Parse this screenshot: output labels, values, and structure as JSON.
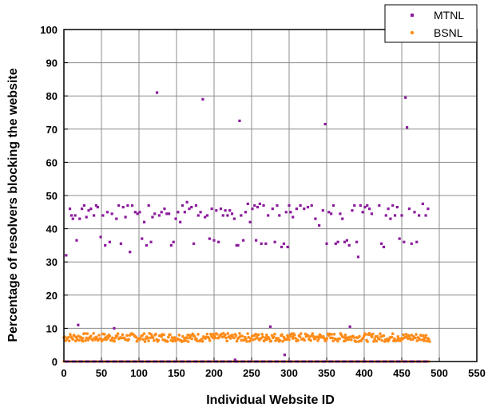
{
  "chart_data": {
    "type": "scatter",
    "title": "",
    "xlabel": "Individual Website ID",
    "ylabel": "Percentage of resolvers blocking the website",
    "xlim": [
      0,
      550
    ],
    "ylim": [
      0,
      100
    ],
    "x_ticks": [
      "0",
      "50",
      "100",
      "150",
      "200",
      "250",
      "300",
      "350",
      "400",
      "450",
      "500",
      "550"
    ],
    "y_ticks": [
      "0",
      "10",
      "20",
      "30",
      "40",
      "50",
      "60",
      "70",
      "80",
      "90",
      "100"
    ],
    "grid": true,
    "legend_position": "top-right",
    "series": [
      {
        "name": "MTNL",
        "color": "#8b1a9c",
        "points": [
          [
            3,
            32
          ],
          [
            8,
            46
          ],
          [
            10,
            44
          ],
          [
            12,
            43
          ],
          [
            15,
            44
          ],
          [
            17,
            36.5
          ],
          [
            19,
            11
          ],
          [
            21,
            43
          ],
          [
            24,
            46
          ],
          [
            27,
            47
          ],
          [
            30,
            43.5
          ],
          [
            33,
            45.5
          ],
          [
            36,
            46
          ],
          [
            40,
            44
          ],
          [
            43,
            47
          ],
          [
            45,
            46.5
          ],
          [
            49,
            37.5
          ],
          [
            52,
            44
          ],
          [
            55,
            35
          ],
          [
            58,
            45
          ],
          [
            61,
            36
          ],
          [
            64,
            44.5
          ],
          [
            67,
            10
          ],
          [
            70,
            43
          ],
          [
            73,
            47
          ],
          [
            76,
            35.5
          ],
          [
            79,
            46.5
          ],
          [
            82,
            43.5
          ],
          [
            85,
            47
          ],
          [
            88,
            33
          ],
          [
            91,
            47
          ],
          [
            95,
            45
          ],
          [
            98,
            44.5
          ],
          [
            101,
            45
          ],
          [
            104,
            37
          ],
          [
            107,
            42
          ],
          [
            110,
            35
          ],
          [
            113,
            47
          ],
          [
            116,
            36
          ],
          [
            118,
            43.5
          ],
          [
            121,
            44.5
          ],
          [
            124,
            81
          ],
          [
            127,
            44
          ],
          [
            130,
            45
          ],
          [
            134,
            46
          ],
          [
            137,
            44.5
          ],
          [
            140,
            44.5
          ],
          [
            143,
            35
          ],
          [
            146,
            36
          ],
          [
            149,
            43
          ],
          [
            152,
            45
          ],
          [
            155,
            42
          ],
          [
            158,
            47
          ],
          [
            161,
            45
          ],
          [
            164,
            48
          ],
          [
            167,
            46
          ],
          [
            170,
            46.5
          ],
          [
            173,
            35.5
          ],
          [
            176,
            47
          ],
          [
            179,
            44
          ],
          [
            182,
            45
          ],
          [
            185,
            79
          ],
          [
            188,
            43.5
          ],
          [
            191,
            44
          ],
          [
            194,
            37
          ],
          [
            197,
            46
          ],
          [
            200,
            36.5
          ],
          [
            203,
            45.5
          ],
          [
            206,
            36
          ],
          [
            209,
            46
          ],
          [
            212,
            44
          ],
          [
            215,
            45.5
          ],
          [
            218,
            44
          ],
          [
            221,
            45.5
          ],
          [
            224,
            44.5
          ],
          [
            227,
            43
          ],
          [
            228,
            0.5
          ],
          [
            230,
            35
          ],
          [
            232,
            35
          ],
          [
            234,
            72.5
          ],
          [
            236,
            44
          ],
          [
            239,
            36.5
          ],
          [
            242,
            45
          ],
          [
            245,
            47.5
          ],
          [
            248,
            42
          ],
          [
            251,
            46
          ],
          [
            254,
            47
          ],
          [
            256,
            36.5
          ],
          [
            258,
            46.5
          ],
          [
            261,
            47.5
          ],
          [
            263,
            35.5
          ],
          [
            266,
            47
          ],
          [
            269,
            35.5
          ],
          [
            272,
            44
          ],
          [
            275,
            10.5
          ],
          [
            278,
            46
          ],
          [
            281,
            36
          ],
          [
            284,
            47
          ],
          [
            287,
            44
          ],
          [
            290,
            34.5
          ],
          [
            293,
            35.5
          ],
          [
            294,
            2
          ],
          [
            296,
            45
          ],
          [
            298,
            34.5
          ],
          [
            300,
            47
          ],
          [
            302,
            45
          ],
          [
            305,
            43.5
          ],
          [
            310,
            46
          ],
          [
            315,
            47
          ],
          [
            320,
            46
          ],
          [
            325,
            46.5
          ],
          [
            330,
            47
          ],
          [
            335,
            43
          ],
          [
            340,
            41
          ],
          [
            345,
            45.5
          ],
          [
            348,
            71.5
          ],
          [
            350,
            35.5
          ],
          [
            353,
            45
          ],
          [
            356,
            44.5
          ],
          [
            359,
            47
          ],
          [
            362,
            35.5
          ],
          [
            365,
            36
          ],
          [
            368,
            44.5
          ],
          [
            371,
            43
          ],
          [
            374,
            36
          ],
          [
            377,
            36.5
          ],
          [
            380,
            35
          ],
          [
            381,
            10.5
          ],
          [
            384,
            45.5
          ],
          [
            387,
            47
          ],
          [
            390,
            36
          ],
          [
            392,
            31.5
          ],
          [
            395,
            47
          ],
          [
            398,
            45
          ],
          [
            401,
            46.5
          ],
          [
            404,
            47
          ],
          [
            407,
            46
          ],
          [
            410,
            44.5
          ],
          [
            420,
            47
          ],
          [
            423,
            35.5
          ],
          [
            426,
            34.5
          ],
          [
            429,
            44
          ],
          [
            432,
            46
          ],
          [
            435,
            43
          ],
          [
            438,
            47
          ],
          [
            441,
            44
          ],
          [
            444,
            46.5
          ],
          [
            447,
            37
          ],
          [
            450,
            44
          ],
          [
            453,
            36
          ],
          [
            455,
            79.5
          ],
          [
            457,
            70.5
          ],
          [
            460,
            46
          ],
          [
            463,
            35.5
          ],
          [
            467,
            45
          ],
          [
            470,
            36
          ],
          [
            473,
            44
          ],
          [
            478,
            47.5
          ],
          [
            482,
            44
          ],
          [
            485,
            46
          ]
        ]
      },
      {
        "name": "BSNL",
        "color": "#ff8c1a",
        "points": [
          [
            25,
            7
          ],
          [
            60,
            8
          ],
          [
            95,
            7.5
          ],
          [
            130,
            7.5
          ],
          [
            165,
            8
          ],
          [
            200,
            7
          ],
          [
            235,
            7.5
          ],
          [
            270,
            8
          ],
          [
            305,
            7.5
          ],
          [
            340,
            7.5
          ],
          [
            375,
            8
          ],
          [
            410,
            7.5
          ],
          [
            445,
            7.5
          ],
          [
            480,
            7
          ]
        ],
        "band": {
          "y_min": 6,
          "y_max": 8.5,
          "x_range": [
            0,
            488
          ]
        }
      }
    ],
    "baseline_zero_points": "both series contain many points at 0 across x 0–488"
  }
}
